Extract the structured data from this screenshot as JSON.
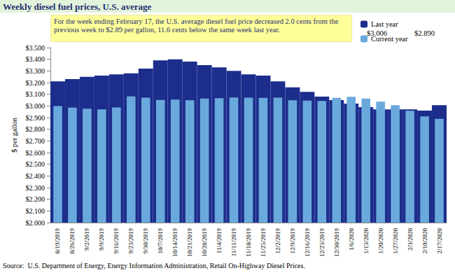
{
  "chart_data": {
    "type": "bar",
    "title": "Weekly diesel fuel prices, U.S. average",
    "annotations": [
      {
        "text": "For the week ending February 17, the U.S. average diesel fuel price decreased 2.0 cents from the previous week to $2.89 per gallon, 11.6 cents below the same week last year."
      }
    ],
    "y_label": "$ per gallon",
    "source": "Source:  U.S. Department of Energy, Energy Information Administration, Retail On-Highway Diesel Prices.",
    "categories": [
      "8/19/2019",
      "8/26/2019",
      "9/2/2019",
      "9/9/2019",
      "9/16/2019",
      "9/23/2019",
      "9/30/2019",
      "10/7/2019",
      "10/14/2019",
      "10/21/2019",
      "10/28/2019",
      "11/4/2019",
      "11/11/2019",
      "11/18/2019",
      "11/25/2019",
      "12/2/2019",
      "12/9/2019",
      "12/16/2019",
      "12/23/2019",
      "12/30/2019",
      "1/6/2020",
      "1/13/2020",
      "1/20/2020",
      "1/27/2020",
      "2/3/2020",
      "2/10/2020",
      "2/17/2020"
    ],
    "series": [
      {
        "name": "Last year",
        "color": "#1c2d8c",
        "legend_value": "$3.006",
        "values": [
          3.21,
          3.23,
          3.25,
          3.26,
          3.27,
          3.28,
          3.32,
          3.39,
          3.4,
          3.38,
          3.35,
          3.33,
          3.3,
          3.27,
          3.26,
          3.21,
          3.16,
          3.12,
          3.08,
          3.05,
          3.02,
          2.99,
          2.97,
          2.97,
          2.97,
          2.96,
          3.006
        ]
      },
      {
        "name": "Current year",
        "color": "#6aa9dc",
        "legend_value": "$2.890",
        "values": [
          2.999,
          2.986,
          2.977,
          2.971,
          2.987,
          3.081,
          3.071,
          3.051,
          3.054,
          3.048,
          3.064,
          3.066,
          3.073,
          3.071,
          3.07,
          3.071,
          3.049,
          3.046,
          3.043,
          3.069,
          3.079,
          3.064,
          3.037,
          3.007,
          2.959,
          2.91,
          2.89
        ]
      }
    ],
    "ylim": [
      2,
      3.5
    ],
    "yticks": [
      {
        "value": 2.0,
        "label": "$2.000"
      },
      {
        "value": 2.1,
        "label": "$2.100"
      },
      {
        "value": 2.2,
        "label": "$2.200"
      },
      {
        "value": 2.3,
        "label": "$2.300"
      },
      {
        "value": 2.4,
        "label": "$2.400"
      },
      {
        "value": 2.5,
        "label": "$2.500"
      },
      {
        "value": 2.6,
        "label": "$2.600"
      },
      {
        "value": 2.7,
        "label": "$2.700"
      },
      {
        "value": 2.8,
        "label": "$2.800"
      },
      {
        "value": 2.9,
        "label": "$2.900"
      },
      {
        "value": 3.0,
        "label": "$3.000"
      },
      {
        "value": 3.1,
        "label": "$3.100"
      },
      {
        "value": 3.2,
        "label": "$3.200"
      },
      {
        "value": 3.3,
        "label": "$3.300"
      },
      {
        "value": 3.4,
        "label": "$3.400"
      },
      {
        "value": 3.5,
        "label": "$3.500"
      }
    ],
    "grid": false,
    "legend": "top right"
  }
}
